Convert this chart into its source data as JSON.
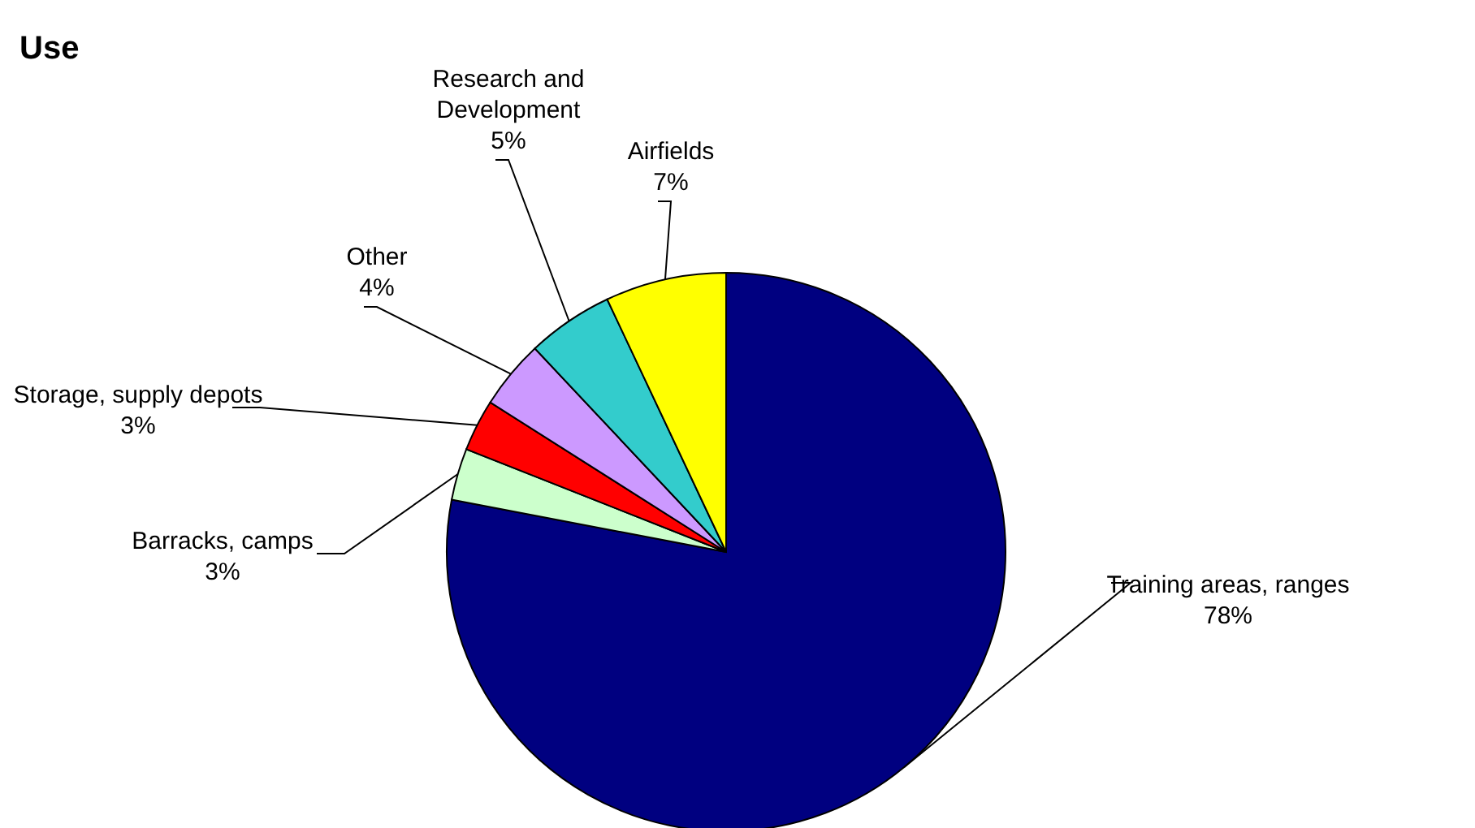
{
  "chart_data": {
    "type": "pie",
    "title": "Use",
    "categories": [
      "Training areas, ranges",
      "Barracks, camps",
      "Storage, supply depots",
      "Other",
      "Research and Development",
      "Airfields"
    ],
    "values": [
      78,
      3,
      3,
      4,
      5,
      7
    ],
    "value_labels": [
      "78%",
      "3%",
      "3%",
      "4%",
      "5%",
      "7%"
    ],
    "colors": [
      "#000080",
      "#ccffcc",
      "#ff0000",
      "#cc99ff",
      "#33cccc",
      "#ffff00"
    ]
  }
}
